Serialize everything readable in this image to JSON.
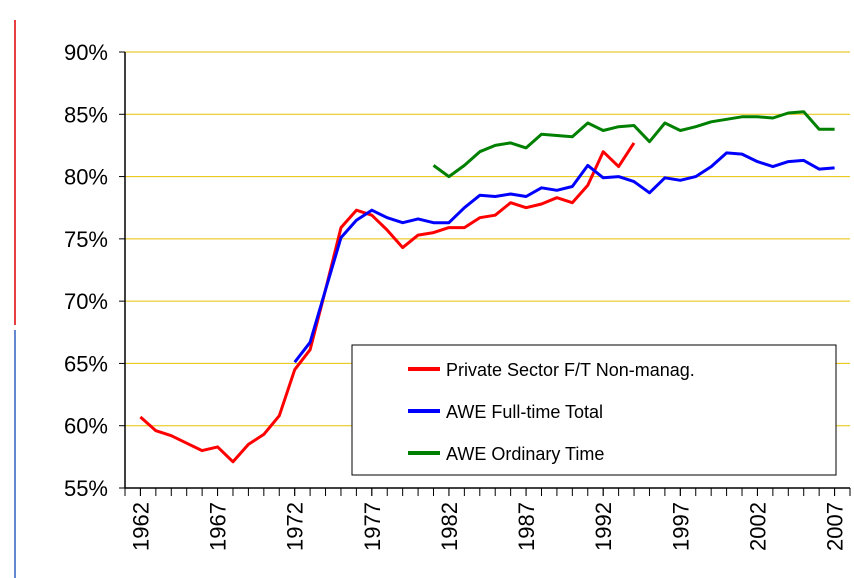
{
  "chart_data": {
    "type": "line",
    "x": [
      1962,
      1963,
      1964,
      1965,
      1966,
      1967,
      1968,
      1969,
      1970,
      1971,
      1972,
      1973,
      1974,
      1975,
      1976,
      1977,
      1978,
      1979,
      1980,
      1981,
      1982,
      1983,
      1984,
      1985,
      1986,
      1987,
      1988,
      1989,
      1990,
      1991,
      1992,
      1993,
      1994,
      1995,
      1996,
      1997,
      1998,
      1999,
      2000,
      2001,
      2002,
      2003,
      2004,
      2005,
      2006,
      2007
    ],
    "series": [
      {
        "name": "Private Sector F/T Non-manag.",
        "color": "#ff0000",
        "values": [
          60.7,
          59.6,
          59.2,
          58.6,
          58.0,
          58.3,
          57.1,
          58.5,
          59.3,
          60.8,
          64.5,
          66.1,
          70.9,
          75.9,
          77.3,
          76.9,
          75.7,
          74.3,
          75.3,
          75.5,
          75.9,
          75.9,
          76.7,
          76.9,
          77.9,
          77.5,
          77.8,
          78.3,
          77.9,
          79.3,
          82.0,
          80.8,
          82.7,
          null,
          null,
          null,
          null,
          null,
          null,
          null,
          null,
          null,
          null,
          null,
          null,
          null
        ]
      },
      {
        "name": "AWE Full-time Total",
        "color": "#0000ff",
        "values": [
          null,
          null,
          null,
          null,
          null,
          null,
          null,
          null,
          null,
          null,
          65.1,
          66.7,
          70.9,
          75.1,
          76.5,
          77.3,
          76.7,
          76.3,
          76.6,
          76.3,
          76.3,
          77.5,
          78.5,
          78.4,
          78.6,
          78.4,
          79.1,
          78.9,
          79.2,
          80.9,
          79.9,
          80.0,
          79.6,
          78.7,
          79.9,
          79.7,
          80.0,
          80.8,
          81.9,
          81.8,
          81.2,
          80.8,
          81.2,
          81.3,
          80.6,
          80.7
        ]
      },
      {
        "name": "AWE Ordinary Time",
        "color": "#008000",
        "values": [
          null,
          null,
          null,
          null,
          null,
          null,
          null,
          null,
          null,
          null,
          null,
          null,
          null,
          null,
          null,
          null,
          null,
          null,
          null,
          80.9,
          80.0,
          80.9,
          82.0,
          82.5,
          82.7,
          82.3,
          83.4,
          83.3,
          83.2,
          84.3,
          83.7,
          84.0,
          84.1,
          82.8,
          84.3,
          83.7,
          84.0,
          84.4,
          84.6,
          84.8,
          84.8,
          84.7,
          85.1,
          85.2,
          83.8,
          83.8
        ]
      }
    ],
    "xlim": [
      1961,
      2008
    ],
    "xticks": [
      1962,
      1967,
      1972,
      1977,
      1982,
      1987,
      1992,
      1997,
      2002,
      2007
    ],
    "ylim": [
      55,
      90
    ],
    "yticks": [
      {
        "value": 55,
        "label": "55%"
      },
      {
        "value": 60,
        "label": "60%"
      },
      {
        "value": 65,
        "label": "65%"
      },
      {
        "value": 70,
        "label": "70%"
      },
      {
        "value": 75,
        "label": "75%"
      },
      {
        "value": 80,
        "label": "80%"
      },
      {
        "value": 85,
        "label": "85%"
      },
      {
        "value": 90,
        "label": "90%"
      }
    ],
    "grid": true,
    "grid_color": "#e6c200"
  }
}
